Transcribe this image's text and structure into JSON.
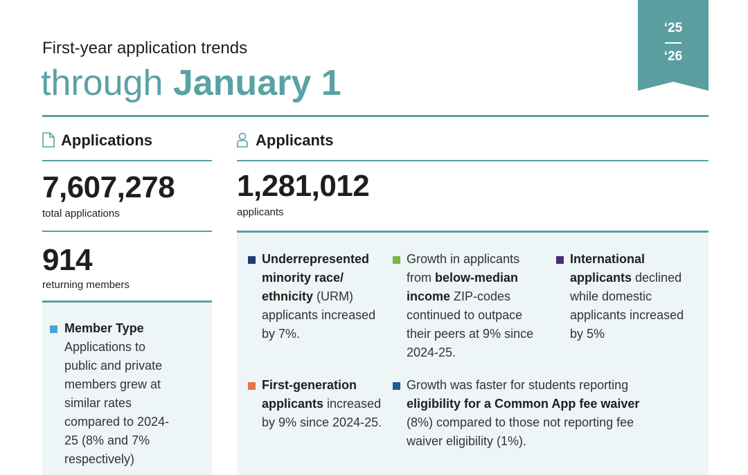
{
  "header": {
    "subtitle": "First-year application trends",
    "title_light": "through",
    "title_bold": "January 1",
    "badge_top": "‘25",
    "badge_bottom": "‘26"
  },
  "applications": {
    "heading": "Applications",
    "total": "7,607,278",
    "total_label": "total applications",
    "returning": "914",
    "returning_label": "returning members",
    "member_type": {
      "color": "#4da3d4",
      "heading": "Member Type",
      "text": "Applications to public and private members grew at similar rates compared to 2024-25 (8% and 7% respectively)"
    }
  },
  "applicants": {
    "heading": "Applicants",
    "total": "1,281,012",
    "total_label": "applicants",
    "notes": [
      {
        "color": "#1f3b73",
        "parts": [
          {
            "text": "Underrepresented minority race/ ethnicity",
            "bold": true
          },
          {
            "text": " (URM) applicants increased by 7%.",
            "bold": false
          }
        ]
      },
      {
        "color": "#7cb342",
        "parts": [
          {
            "text": "Growth in applicants from ",
            "bold": false
          },
          {
            "text": "below-median income",
            "bold": true
          },
          {
            "text": " ZIP-codes continued to outpace their peers at 9% since 2024-25.",
            "bold": false
          }
        ]
      },
      {
        "color": "#4a2a7a",
        "parts": [
          {
            "text": "International applicants",
            "bold": true
          },
          {
            "text": " declined while domestic applicants increased by 5%",
            "bold": false
          }
        ]
      },
      {
        "color": "#e8714a",
        "parts": [
          {
            "text": "First-generation applicants",
            "bold": true
          },
          {
            "text": " increased by 9% since 2024-25.",
            "bold": false
          }
        ]
      },
      {
        "color": "#1f5a96",
        "parts": [
          {
            "text": "Growth was faster for students reporting ",
            "bold": false
          },
          {
            "text": "eligibility for a Common App fee waiver",
            "bold": true
          },
          {
            "text": " (8%) compared to those not reporting fee waiver eligibility (1%).",
            "bold": false
          }
        ]
      }
    ]
  }
}
